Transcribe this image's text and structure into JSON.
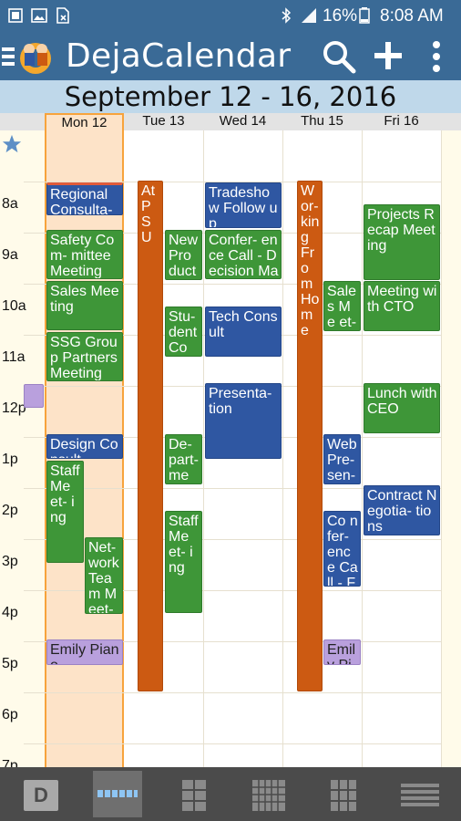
{
  "status": {
    "battery": "16%",
    "time": "8:08 AM"
  },
  "app": {
    "title": "DejaCalendar"
  },
  "week": {
    "title": "September 12 - 16, 2016"
  },
  "days": [
    "Mon 12",
    "Tue 13",
    "Wed 14",
    "Thu 15",
    "Fri 16"
  ],
  "hours": [
    "8a",
    "9a",
    "10a",
    "11a",
    "12p",
    "1p",
    "2p",
    "3p",
    "4p",
    "5p",
    "6p",
    "7p"
  ],
  "events": {
    "mon_regional": "Regional Consulta- tion",
    "mon_safety": "Safety Com- mittee Meeting",
    "mon_sales": "Sales Meeting",
    "mon_ssg": "SSG Group Partners Meeting",
    "mon_design": "Design Consult",
    "mon_staff": "Staff Me et- ing",
    "mon_network": "Net- work Tea m Meet- ing",
    "mon_piano": "Emily Piano",
    "tue_atpsu": "At PS U",
    "tue_newproduct": "New Pro duct Review",
    "tue_studentco": "Stu- dent Co",
    "tue_department": "De- part- me nt",
    "tue_staff": "Staff Me et- ing",
    "wed_tradeshow": "Tradeshow Follow up",
    "wed_conference": "Confer- ence Call - Decision Making",
    "wed_tech": "Tech Consult",
    "wed_presentation": "Presenta- tion",
    "thu_wfh": "Wor- king From Ho me",
    "thu_sales": "Sales Me et- ing",
    "thu_web": "Web Pre- sen- tation",
    "thu_conference": "Co nfer- ence Call - Fi- nal",
    "thu_piano": "Emil y Pi- ano",
    "fri_projects": "Projects Recap Meeting",
    "fri_meetingcto": "Meeting with CTO",
    "fri_lunch": "Lunch with CEO",
    "fri_contract": "Contract Negotia- tions"
  },
  "nav": {
    "d_label": "D"
  },
  "colors": {
    "bar": "#3a6a96",
    "green": "#3e9638",
    "blue": "#2f57a2",
    "orange": "#cc5a12",
    "purple": "#b9a0dd",
    "today": "#fde3c8",
    "today_border": "#f7a33c"
  }
}
